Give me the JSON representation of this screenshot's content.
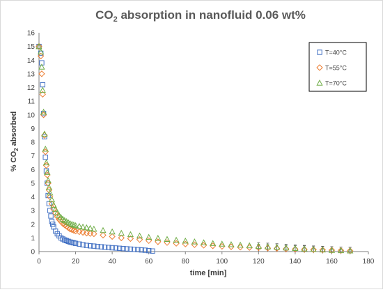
{
  "chart_data": {
    "type": "scatter",
    "title_main": "CO",
    "title_sub": "2",
    "title_rest": " absorption in nanofluid 0.06 wt%",
    "xlabel": "time [min]",
    "ylabel_main": "% CO",
    "ylabel_sub": "2",
    "ylabel_rest": " absorbed",
    "xlim": [
      0,
      180
    ],
    "ylim": [
      0,
      16
    ],
    "x_ticks": [
      0,
      20,
      40,
      60,
      80,
      100,
      120,
      140,
      160,
      180
    ],
    "y_ticks": [
      0,
      1,
      2,
      3,
      4,
      5,
      6,
      7,
      8,
      9,
      10,
      11,
      12,
      13,
      14,
      15,
      16
    ],
    "grid": "none",
    "legend_position": "top-right",
    "error_bars": "yes",
    "series": [
      {
        "name": "T=40°C",
        "marker": "square",
        "color": "#4472C4",
        "x": [
          0,
          1,
          1.5,
          2,
          2.5,
          3,
          3.5,
          4,
          4.5,
          5,
          5.5,
          6,
          6.5,
          7,
          7.5,
          8,
          9,
          10,
          11,
          12,
          13,
          14,
          15,
          16,
          17,
          18,
          19,
          20,
          22,
          24,
          26,
          28,
          30,
          32,
          34,
          36,
          38,
          40,
          42,
          44,
          46,
          48,
          50,
          52,
          54,
          56,
          58,
          60,
          62
        ],
        "y": [
          15,
          14.5,
          13.8,
          12.2,
          10.1,
          8.4,
          6.9,
          5.9,
          5.0,
          4.1,
          3.5,
          3.0,
          2.6,
          2.2,
          2.0,
          1.8,
          1.5,
          1.3,
          1.15,
          1.0,
          0.92,
          0.85,
          0.8,
          0.75,
          0.7,
          0.67,
          0.64,
          0.6,
          0.55,
          0.5,
          0.45,
          0.42,
          0.4,
          0.37,
          0.35,
          0.32,
          0.3,
          0.28,
          0.26,
          0.24,
          0.22,
          0.2,
          0.18,
          0.16,
          0.14,
          0.12,
          0.1,
          0.07,
          0.04
        ]
      },
      {
        "name": "T=55°C",
        "marker": "diamond",
        "color": "#ED7D31",
        "x": [
          0,
          1,
          1.5,
          2,
          2.5,
          3,
          3.5,
          4,
          4.5,
          5,
          5.5,
          6,
          7,
          8,
          9,
          10,
          11,
          12,
          13,
          14,
          15,
          16,
          17,
          18,
          19,
          20,
          22,
          24,
          26,
          28,
          30,
          35,
          40,
          45,
          50,
          55,
          60,
          65,
          70,
          75,
          80,
          85,
          90,
          95,
          100,
          105,
          110,
          115,
          120,
          125,
          130,
          135,
          140,
          145,
          150,
          155,
          160,
          165,
          170
        ],
        "y": [
          15,
          14.3,
          13.0,
          11.5,
          10.0,
          8.5,
          7.3,
          6.3,
          5.6,
          5.0,
          4.5,
          4.0,
          3.5,
          3.1,
          2.8,
          2.55,
          2.35,
          2.2,
          2.05,
          1.95,
          1.85,
          1.75,
          1.65,
          1.6,
          1.55,
          1.5,
          1.45,
          1.4,
          1.35,
          1.32,
          1.3,
          1.2,
          1.1,
          1.0,
          0.95,
          0.88,
          0.8,
          0.72,
          0.66,
          0.6,
          0.55,
          0.5,
          0.46,
          0.42,
          0.38,
          0.35,
          0.32,
          0.3,
          0.27,
          0.25,
          0.23,
          0.2,
          0.18,
          0.16,
          0.14,
          0.12,
          0.1,
          0.08,
          0.06
        ]
      },
      {
        "name": "T=70°C",
        "marker": "triangle",
        "color": "#70AD47",
        "x": [
          0,
          1,
          1.5,
          2,
          2.5,
          3,
          3.5,
          4,
          4.5,
          5,
          5.5,
          6,
          7,
          8,
          9,
          10,
          11,
          12,
          13,
          14,
          15,
          16,
          17,
          18,
          19,
          20,
          22,
          24,
          26,
          28,
          30,
          35,
          40,
          45,
          50,
          55,
          60,
          65,
          70,
          75,
          80,
          85,
          90,
          95,
          100,
          105,
          110,
          115,
          120,
          125,
          130,
          135,
          140,
          145,
          150,
          155,
          160,
          165,
          170
        ],
        "y": [
          15,
          14.6,
          13.5,
          11.8,
          10.2,
          8.6,
          7.5,
          6.5,
          5.8,
          5.2,
          4.7,
          4.3,
          3.8,
          3.4,
          3.1,
          2.85,
          2.65,
          2.5,
          2.38,
          2.28,
          2.2,
          2.12,
          2.05,
          2.0,
          1.95,
          1.9,
          1.85,
          1.8,
          1.75,
          1.7,
          1.65,
          1.55,
          1.45,
          1.35,
          1.25,
          1.15,
          1.05,
          0.98,
          0.9,
          0.84,
          0.78,
          0.72,
          0.66,
          0.6,
          0.56,
          0.52,
          0.48,
          0.44,
          0.4,
          0.36,
          0.32,
          0.28,
          0.24,
          0.2,
          0.16,
          0.13,
          0.1,
          0.08,
          0.06
        ]
      }
    ]
  }
}
